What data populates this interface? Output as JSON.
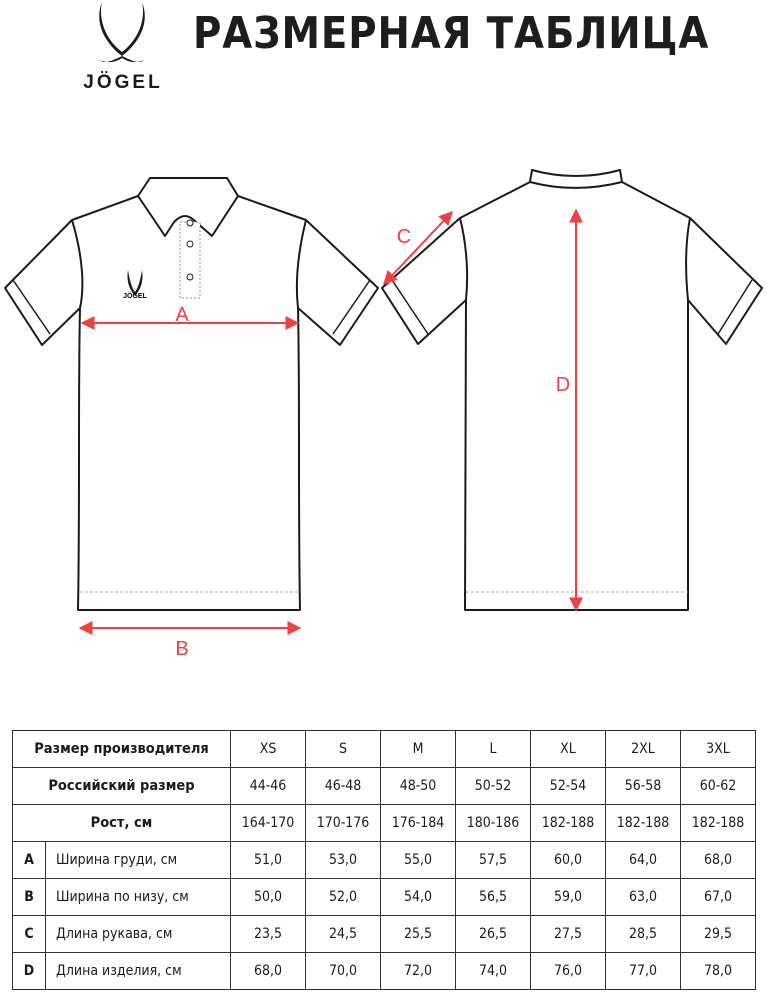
{
  "header": {
    "brand": "JÖGEL",
    "title": "РАЗМЕРНАЯ ТАБЛИЦА"
  },
  "diagram": {
    "labels": {
      "a": "A",
      "b": "B",
      "c": "C",
      "d": "D"
    },
    "shirt_logo_text": "JÖGEL",
    "accent_color": "#f04040"
  },
  "table": {
    "rows": [
      {
        "label": "Размер производителя",
        "values": [
          "XS",
          "S",
          "M",
          "L",
          "XL",
          "2XL",
          "3XL"
        ]
      },
      {
        "label": "Российский размер",
        "values": [
          "44-46",
          "46-48",
          "48-50",
          "50-52",
          "52-54",
          "56-58",
          "60-62"
        ]
      },
      {
        "label": "Рост, см",
        "values": [
          "164-170",
          "170-176",
          "176-184",
          "180-186",
          "182-188",
          "182-188",
          "182-188"
        ]
      },
      {
        "letter": "A",
        "label": "Ширина груди, см",
        "values": [
          "51,0",
          "53,0",
          "55,0",
          "57,5",
          "60,0",
          "64,0",
          "68,0"
        ]
      },
      {
        "letter": "B",
        "label": "Ширина по низу, см",
        "values": [
          "50,0",
          "52,0",
          "54,0",
          "56,5",
          "59,0",
          "63,0",
          "67,0"
        ]
      },
      {
        "letter": "C",
        "label": "Длина рукава, см",
        "values": [
          "23,5",
          "24,5",
          "25,5",
          "26,5",
          "27,5",
          "28,5",
          "29,5"
        ]
      },
      {
        "letter": "D",
        "label": "Длина изделия, см",
        "values": [
          "68,0",
          "70,0",
          "72,0",
          "74,0",
          "76,0",
          "77,0",
          "78,0"
        ]
      }
    ]
  }
}
